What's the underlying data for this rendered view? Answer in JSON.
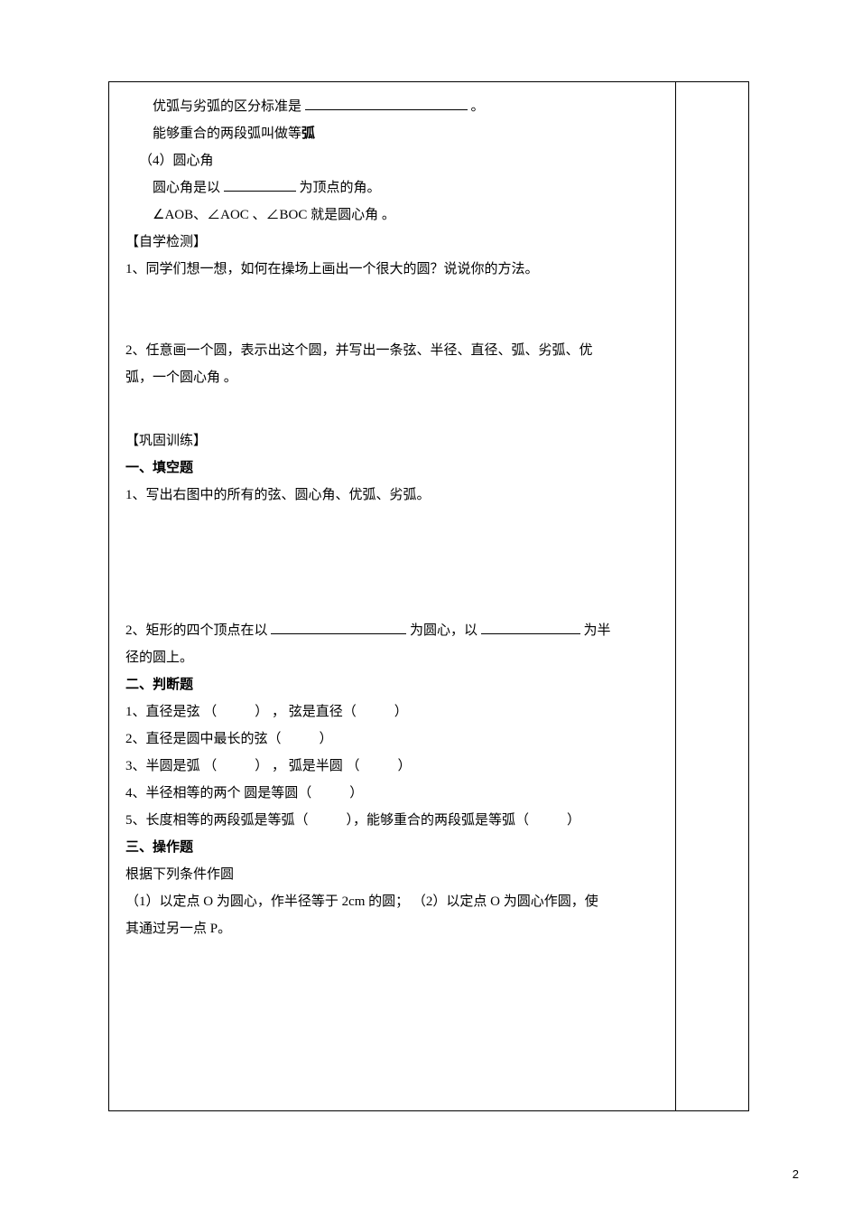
{
  "page": {
    "number": "2",
    "background_color": "#ffffff",
    "border_color": "#000000",
    "text_color": "#000000",
    "font_size_body": 15,
    "font_family": "SimSun"
  },
  "content": {
    "line1_a": "优弧与劣弧的区分标准是",
    "line1_b": "。",
    "line2_a": "能够重合的两段弧叫做等",
    "line2_b": "弧",
    "line3": "（4）圆心角",
    "line4_a": "圆心角是以",
    "line4_b": "为顶点的角。",
    "line5": "∠AOB、∠AOC 、∠BOC 就是圆心角 。",
    "section_selfcheck": "【自学检测】",
    "q1": "1、同学们想一想，如何在操场上画出一个很大的圆？说说你的方法。",
    "q2_a": "2、任意画一个圆，表示出这个圆，并写出一条弦、半径、直径、弧、劣弧、优",
    "q2_b": "弧，一个圆心角 。",
    "section_practice": "【巩固训练】",
    "practice_fill_header": "一、填空题",
    "fill_q1": "1、写出右图中的所有的弦、圆心角、优弧、劣弧。",
    "fill_q2_a": "2、矩形的四个顶点在以",
    "fill_q2_b": "为圆心，以",
    "fill_q2_c": "为半",
    "fill_q2_d": "径的圆上。",
    "practice_judge_header": "二、判断题",
    "judge_q1_a": "1、直径是弦  （",
    "judge_q1_b": "）   ，   弦是直径（",
    "judge_q1_c": "）",
    "judge_q2_a": "2、直径是圆中最长的弦（",
    "judge_q2_b": "）",
    "judge_q3_a": "3、半圆是弧  （",
    "judge_q3_b": "）  ，   弧是半圆 （",
    "judge_q3_c": "）",
    "judge_q4_a": "4、半径相等的两个 圆是等圆（",
    "judge_q4_b": "）",
    "judge_q5_a": "5、长度相等的两段弧是等弧（",
    "judge_q5_b": "），能够重合的两段弧是等弧（",
    "judge_q5_c": "）",
    "practice_op_header": "三、操作题",
    "op_intro": "根据下列条件作圆",
    "op_q1_a": "（1）以定点 O 为圆心，作半径等于 2cm 的圆；  （2）以定点 O 为圆心作圆，使",
    "op_q1_b": "其通过另一点 P。"
  }
}
